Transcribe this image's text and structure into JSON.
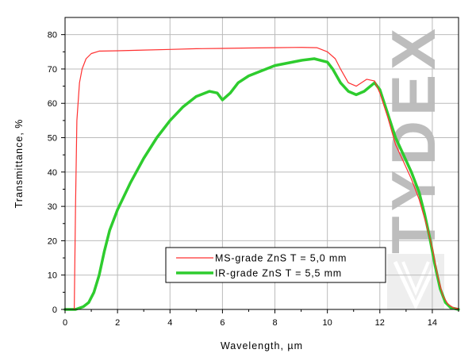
{
  "chart_data": {
    "type": "line",
    "xlabel": "Wavelength, µm",
    "ylabel": "Transmittance, %",
    "xlim": [
      0,
      15
    ],
    "ylim": [
      0,
      85
    ],
    "xticks": [
      0,
      2,
      4,
      6,
      8,
      10,
      12,
      14
    ],
    "yticks": [
      0,
      10,
      20,
      30,
      40,
      50,
      60,
      70,
      80
    ],
    "grid": true,
    "legend_position": "bottom-center",
    "series": [
      {
        "name": "MS-grade ZnS T = 5,0 mm",
        "color": "#ff3030",
        "style": "thin",
        "points": [
          [
            0.35,
            0
          ],
          [
            0.4,
            30
          ],
          [
            0.45,
            55
          ],
          [
            0.55,
            66
          ],
          [
            0.65,
            70
          ],
          [
            0.8,
            73
          ],
          [
            1.0,
            74.5
          ],
          [
            1.3,
            75.2
          ],
          [
            2,
            75.3
          ],
          [
            3,
            75.5
          ],
          [
            4,
            75.7
          ],
          [
            5,
            75.9
          ],
          [
            6,
            76
          ],
          [
            7,
            76.1
          ],
          [
            8,
            76.2
          ],
          [
            9,
            76.3
          ],
          [
            9.6,
            76.2
          ],
          [
            10,
            75
          ],
          [
            10.3,
            73
          ],
          [
            10.5,
            70
          ],
          [
            10.8,
            66
          ],
          [
            11.1,
            65
          ],
          [
            11.3,
            66
          ],
          [
            11.5,
            67
          ],
          [
            11.8,
            66.5
          ],
          [
            12,
            63
          ],
          [
            12.3,
            56
          ],
          [
            12.6,
            48
          ],
          [
            12.9,
            43
          ],
          [
            13.2,
            38
          ],
          [
            13.5,
            32
          ],
          [
            13.8,
            24
          ],
          [
            14.0,
            18
          ],
          [
            14.2,
            10
          ],
          [
            14.4,
            4
          ],
          [
            14.6,
            1.5
          ],
          [
            14.8,
            0.5
          ],
          [
            15,
            0.2
          ]
        ]
      },
      {
        "name": "IR-grade ZnS T = 5,5 mm",
        "color": "#2ecc2e",
        "style": "thick",
        "points": [
          [
            0,
            0
          ],
          [
            0.4,
            0
          ],
          [
            0.7,
            0.8
          ],
          [
            0.9,
            2
          ],
          [
            1.1,
            5
          ],
          [
            1.3,
            10
          ],
          [
            1.5,
            17
          ],
          [
            1.7,
            23
          ],
          [
            2,
            29
          ],
          [
            2.5,
            37
          ],
          [
            3,
            44
          ],
          [
            3.5,
            50
          ],
          [
            4,
            55
          ],
          [
            4.5,
            59
          ],
          [
            5,
            62
          ],
          [
            5.5,
            63.5
          ],
          [
            5.8,
            63
          ],
          [
            6,
            61
          ],
          [
            6.3,
            63
          ],
          [
            6.6,
            66
          ],
          [
            7,
            68
          ],
          [
            8,
            71
          ],
          [
            9,
            72.5
          ],
          [
            9.5,
            73
          ],
          [
            10,
            72
          ],
          [
            10.2,
            70
          ],
          [
            10.5,
            66
          ],
          [
            10.8,
            63.5
          ],
          [
            11.1,
            62.5
          ],
          [
            11.4,
            63.5
          ],
          [
            11.8,
            66
          ],
          [
            12,
            64
          ],
          [
            12.3,
            57
          ],
          [
            12.6,
            50
          ],
          [
            12.9,
            45
          ],
          [
            13.2,
            40
          ],
          [
            13.5,
            34
          ],
          [
            13.7,
            28
          ],
          [
            13.9,
            21
          ],
          [
            14.1,
            13
          ],
          [
            14.3,
            6
          ],
          [
            14.5,
            2
          ],
          [
            14.7,
            0.5
          ],
          [
            15,
            0
          ]
        ]
      }
    ]
  },
  "watermark": {
    "text": "TYDEX"
  }
}
